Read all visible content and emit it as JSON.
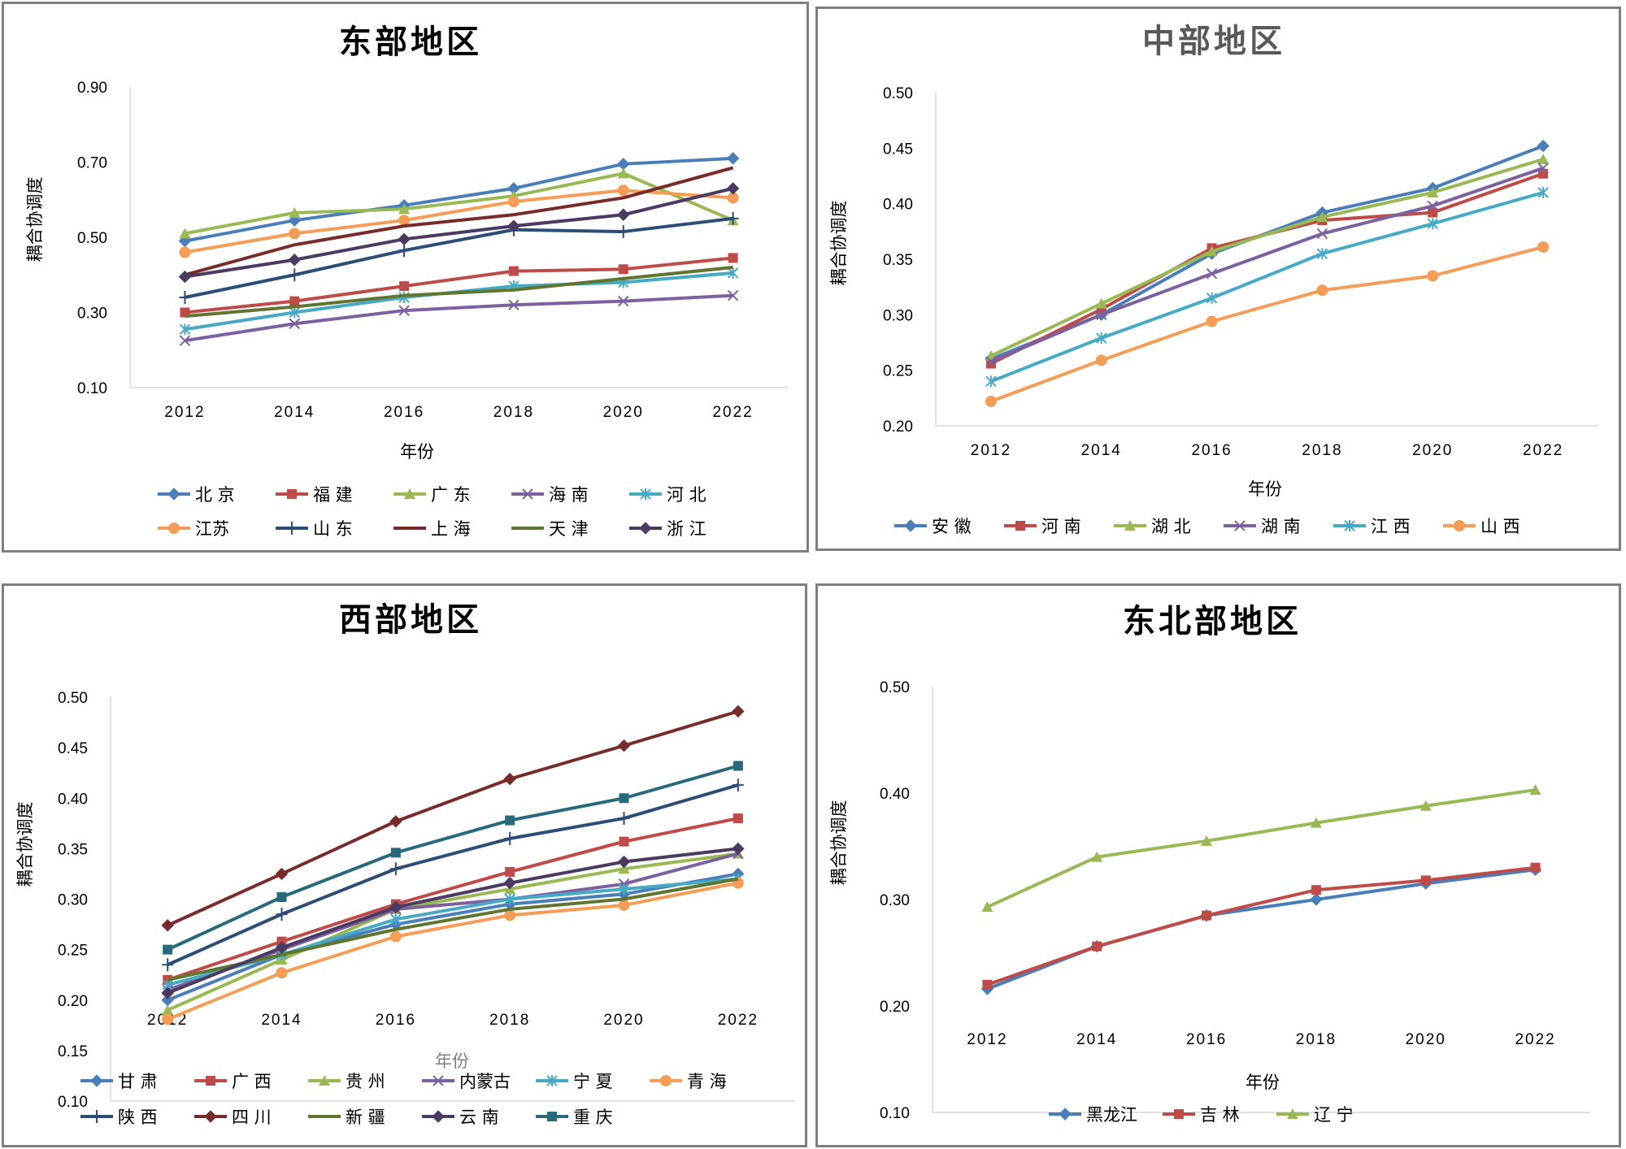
{
  "colors": {
    "北京": "#4a7ebb",
    "福建": "#be4b48",
    "广东": "#98b954",
    "海南": "#7d60a0",
    "河北": "#46aac5",
    "江苏": "#f59d56",
    "山东": "#2c4d75",
    "上海": "#772c2a",
    "天津": "#5f7530",
    "浙江": "#4b3a62",
    "安徽": "#4a7ebb",
    "河南": "#be4b48",
    "湖北": "#98b954",
    "湖南": "#7d60a0",
    "江西": "#46aac5",
    "山西": "#f59d56",
    "甘肃": "#4a7ebb",
    "广西": "#be4b48",
    "贵州": "#98b954",
    "内蒙古": "#7d60a0",
    "宁夏": "#46aac5",
    "青海": "#f59d56",
    "陕西": "#2c4d75",
    "四川": "#772c2a",
    "新疆": "#5f7530",
    "云南": "#4b3a62",
    "重庆": "#276a7c",
    "黑龙江": "#4a7ebb",
    "吉林": "#be4b48",
    "辽宁": "#98b954"
  },
  "chart_data": [
    {
      "type": "line",
      "title": "东部地区",
      "xlabel": "年份",
      "ylabel": "耦合协调度",
      "ylim": [
        0.1,
        0.9
      ],
      "yticks": [
        "0.10",
        "0.30",
        "0.50",
        "0.70",
        "0.90"
      ],
      "categories": [
        "2012",
        "2014",
        "2016",
        "2018",
        "2020",
        "2022"
      ],
      "series": [
        {
          "name": "北 京",
          "key": "北京",
          "marker": "diamond",
          "values": [
            0.49,
            0.545,
            0.585,
            0.63,
            0.695,
            0.71
          ]
        },
        {
          "name": "福 建",
          "key": "福建",
          "marker": "square",
          "values": [
            0.3,
            0.33,
            0.37,
            0.41,
            0.415,
            0.445
          ]
        },
        {
          "name": "广 东",
          "key": "广东",
          "marker": "triangle",
          "values": [
            0.51,
            0.565,
            0.575,
            0.61,
            0.67,
            0.545
          ]
        },
        {
          "name": "海 南",
          "key": "海南",
          "marker": "x",
          "values": [
            0.225,
            0.27,
            0.305,
            0.32,
            0.33,
            0.345
          ]
        },
        {
          "name": "河 北",
          "key": "河北",
          "marker": "asterisk",
          "values": [
            0.255,
            0.3,
            0.34,
            0.37,
            0.38,
            0.405
          ]
        },
        {
          "name": "江苏",
          "key": "江苏",
          "marker": "circle",
          "values": [
            0.46,
            0.51,
            0.545,
            0.595,
            0.625,
            0.605
          ]
        },
        {
          "name": "山 东",
          "key": "山东",
          "marker": "plus",
          "values": [
            0.34,
            0.4,
            0.465,
            0.52,
            0.515,
            0.55
          ]
        },
        {
          "name": "上 海",
          "key": "上海",
          "marker": "none",
          "values": [
            0.4,
            0.48,
            0.53,
            0.56,
            0.605,
            0.685
          ]
        },
        {
          "name": "天 津",
          "key": "天津",
          "marker": "none",
          "values": [
            0.29,
            0.315,
            0.345,
            0.36,
            0.39,
            0.42
          ]
        },
        {
          "name": "浙 江",
          "key": "浙江",
          "marker": "diamond",
          "values": [
            0.395,
            0.44,
            0.495,
            0.53,
            0.56,
            0.63
          ]
        }
      ]
    },
    {
      "type": "line",
      "title": "中部地区",
      "xlabel": "年份",
      "ylabel": "耦合协调度",
      "ylim": [
        0.2,
        0.5
      ],
      "yticks": [
        "0.20",
        "0.25",
        "0.30",
        "0.35",
        "0.40",
        "0.45",
        "0.50"
      ],
      "categories": [
        "2012",
        "2014",
        "2016",
        "2018",
        "2020",
        "2022"
      ],
      "series": [
        {
          "name": "安 徽",
          "key": "安徽",
          "marker": "diamond",
          "values": [
            0.26,
            0.3,
            0.355,
            0.392,
            0.414,
            0.452
          ]
        },
        {
          "name": "河 南",
          "key": "河南",
          "marker": "square",
          "values": [
            0.256,
            0.305,
            0.36,
            0.385,
            0.392,
            0.427
          ]
        },
        {
          "name": "湖 北",
          "key": "湖北",
          "marker": "triangle",
          "values": [
            0.263,
            0.31,
            0.357,
            0.388,
            0.41,
            0.44
          ]
        },
        {
          "name": "湖 南",
          "key": "湖南",
          "marker": "x",
          "values": [
            0.258,
            0.3,
            0.337,
            0.373,
            0.398,
            0.432
          ]
        },
        {
          "name": "江 西",
          "key": "江西",
          "marker": "asterisk",
          "values": [
            0.24,
            0.279,
            0.315,
            0.355,
            0.382,
            0.41
          ]
        },
        {
          "name": "山 西",
          "key": "山西",
          "marker": "circle",
          "values": [
            0.222,
            0.259,
            0.294,
            0.322,
            0.335,
            0.361
          ]
        }
      ]
    },
    {
      "type": "line",
      "title": "西部地区",
      "xlabel": "年份",
      "ylabel": "耦合协调度",
      "ylim": [
        0.1,
        0.5
      ],
      "yticks": [
        "0.10",
        "0.15",
        "0.20",
        "0.25",
        "0.30",
        "0.35",
        "0.40",
        "0.45",
        "0.50"
      ],
      "categories": [
        "2012",
        "2014",
        "2016",
        "2018",
        "2020",
        "2022"
      ],
      "series": [
        {
          "name": "甘 肃",
          "key": "甘肃",
          "marker": "diamond",
          "values": [
            0.2,
            0.245,
            0.275,
            0.295,
            0.305,
            0.325
          ]
        },
        {
          "name": "广 西",
          "key": "广西",
          "marker": "square",
          "values": [
            0.22,
            0.258,
            0.295,
            0.327,
            0.357,
            0.38
          ]
        },
        {
          "name": "贵 州",
          "key": "贵州",
          "marker": "triangle",
          "values": [
            0.19,
            0.24,
            0.29,
            0.31,
            0.33,
            0.345
          ]
        },
        {
          "name": "内蒙古",
          "key": "内蒙古",
          "marker": "x",
          "values": [
            0.21,
            0.25,
            0.29,
            0.3,
            0.315,
            0.345
          ]
        },
        {
          "name": "宁 夏",
          "key": "宁夏",
          "marker": "asterisk",
          "values": [
            0.215,
            0.245,
            0.28,
            0.3,
            0.31,
            0.32
          ]
        },
        {
          "name": "青 海",
          "key": "青海",
          "marker": "circle",
          "values": [
            0.181,
            0.227,
            0.263,
            0.284,
            0.294,
            0.316
          ]
        },
        {
          "name": "陕 西",
          "key": "陕西",
          "marker": "plus",
          "values": [
            0.235,
            0.285,
            0.33,
            0.36,
            0.38,
            0.413
          ]
        },
        {
          "name": "四 川",
          "key": "四川",
          "marker": "diamond",
          "values": [
            0.274,
            0.325,
            0.377,
            0.419,
            0.452,
            0.486
          ]
        },
        {
          "name": "新 疆",
          "key": "新疆",
          "marker": "none",
          "values": [
            0.22,
            0.245,
            0.27,
            0.29,
            0.3,
            0.32
          ]
        },
        {
          "name": "云 南",
          "key": "云南",
          "marker": "diamond",
          "values": [
            0.207,
            0.252,
            0.292,
            0.316,
            0.337,
            0.35
          ]
        },
        {
          "name": "重 庆",
          "key": "重庆",
          "marker": "square",
          "values": [
            0.25,
            0.302,
            0.346,
            0.378,
            0.4,
            0.432
          ]
        }
      ]
    },
    {
      "type": "line",
      "title": "东北部地区",
      "xlabel": "年份",
      "ylabel": "耦合协调度",
      "ylim": [
        0.1,
        0.5
      ],
      "yticks": [
        "0.10",
        "0.20",
        "0.30",
        "0.40",
        "0.50"
      ],
      "categories": [
        "2012",
        "2014",
        "2016",
        "2018",
        "2020",
        "2022"
      ],
      "series": [
        {
          "name": "黑龙江",
          "key": "黑龙江",
          "marker": "diamond",
          "values": [
            0.216,
            0.256,
            0.285,
            0.3,
            0.315,
            0.328
          ]
        },
        {
          "name": "吉 林",
          "key": "吉林",
          "marker": "square",
          "values": [
            0.22,
            0.256,
            0.285,
            0.309,
            0.318,
            0.33
          ]
        },
        {
          "name": "辽 宁",
          "key": "辽宁",
          "marker": "triangle",
          "values": [
            0.293,
            0.34,
            0.355,
            0.372,
            0.388,
            0.403
          ]
        }
      ]
    }
  ]
}
